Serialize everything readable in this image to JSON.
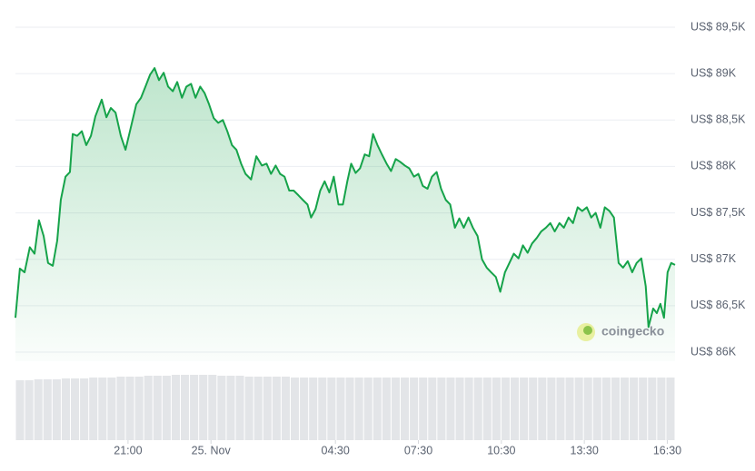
{
  "chart_data": {
    "type": "area",
    "watermark": "coingecko",
    "color": "#16a34a",
    "grid": true,
    "ylim": [
      86000,
      89500
    ],
    "yticks": [
      {
        "value": 86000,
        "label": "US$ 86K"
      },
      {
        "value": 86500,
        "label": "US$ 86,5K"
      },
      {
        "value": 87000,
        "label": "US$ 87K"
      },
      {
        "value": 87500,
        "label": "US$ 87,5K"
      },
      {
        "value": 88000,
        "label": "US$ 88K"
      },
      {
        "value": 88500,
        "label": "US$ 88,5K"
      },
      {
        "value": 89000,
        "label": "US$ 89K"
      },
      {
        "value": 89500,
        "label": "US$ 89,5K"
      }
    ],
    "xlim": [
      -7.07,
      16.78
    ],
    "xticks": [
      {
        "value": -3,
        "label": "21:00"
      },
      {
        "value": 0,
        "label": "25. Nov"
      },
      {
        "value": 4.5,
        "label": "04:30"
      },
      {
        "value": 7.5,
        "label": "07:30"
      },
      {
        "value": 10.5,
        "label": "10:30"
      },
      {
        "value": 13.5,
        "label": "13:30"
      },
      {
        "value": 16.5,
        "label": "16:30"
      }
    ],
    "x": [
      -7.07,
      -6.91,
      -6.74,
      -6.55,
      -6.38,
      -6.22,
      -6.05,
      -5.89,
      -5.72,
      -5.56,
      -5.43,
      -5.26,
      -5.1,
      -5.0,
      -4.84,
      -4.67,
      -4.51,
      -4.34,
      -4.18,
      -3.95,
      -3.78,
      -3.62,
      -3.45,
      -3.26,
      -3.09,
      -2.93,
      -2.7,
      -2.53,
      -2.37,
      -2.2,
      -2.04,
      -1.88,
      -1.71,
      -1.55,
      -1.38,
      -1.22,
      -1.05,
      -0.89,
      -0.72,
      -0.56,
      -0.39,
      -0.23,
      -0.07,
      0.1,
      0.26,
      0.43,
      0.59,
      0.76,
      0.92,
      1.09,
      1.25,
      1.45,
      1.64,
      1.84,
      2.01,
      2.17,
      2.34,
      2.5,
      2.66,
      2.83,
      2.99,
      3.16,
      3.32,
      3.49,
      3.62,
      3.78,
      3.95,
      4.11,
      4.28,
      4.44,
      4.61,
      4.77,
      4.93,
      5.07,
      5.23,
      5.39,
      5.56,
      5.72,
      5.86,
      6.02,
      6.18,
      6.35,
      6.51,
      6.68,
      6.84,
      7.01,
      7.17,
      7.34,
      7.5,
      7.66,
      7.83,
      7.99,
      8.16,
      8.32,
      8.49,
      8.65,
      8.82,
      8.98,
      9.14,
      9.31,
      9.47,
      9.64,
      9.8,
      9.97,
      10.13,
      10.3,
      10.46,
      10.63,
      10.79,
      10.95,
      11.12,
      11.28,
      11.45,
      11.61,
      11.78,
      11.94,
      12.11,
      12.27,
      12.43,
      12.6,
      12.76,
      12.93,
      13.09,
      13.26,
      13.42,
      13.59,
      13.75,
      13.91,
      14.08,
      14.24,
      14.41,
      14.57,
      14.74,
      14.9,
      15.07,
      15.23,
      15.39,
      15.56,
      15.72,
      15.82,
      15.99,
      16.12,
      16.25,
      16.38,
      16.51,
      16.64,
      16.78
    ],
    "values": [
      86370,
      86900,
      86860,
      87130,
      87060,
      87420,
      87250,
      86960,
      86930,
      87200,
      87640,
      87890,
      87940,
      88350,
      88330,
      88380,
      88230,
      88330,
      88540,
      88720,
      88530,
      88630,
      88580,
      88330,
      88180,
      88380,
      88670,
      88740,
      88860,
      88990,
      89060,
      88930,
      89010,
      88860,
      88810,
      88910,
      88740,
      88860,
      88890,
      88740,
      88860,
      88790,
      88670,
      88520,
      88470,
      88500,
      88380,
      88230,
      88180,
      88030,
      87920,
      87860,
      88110,
      88010,
      88030,
      87920,
      88010,
      87920,
      87890,
      87740,
      87740,
      87690,
      87640,
      87590,
      87450,
      87540,
      87740,
      87840,
      87720,
      87890,
      87590,
      87590,
      87840,
      88030,
      87930,
      87980,
      88130,
      88110,
      88350,
      88230,
      88130,
      88030,
      87950,
      88080,
      88050,
      88010,
      87980,
      87890,
      87920,
      87790,
      87760,
      87890,
      87940,
      87760,
      87640,
      87590,
      87340,
      87440,
      87340,
      87450,
      87340,
      87250,
      87000,
      86910,
      86860,
      86810,
      86650,
      86860,
      86960,
      87060,
      87010,
      87150,
      87070,
      87170,
      87230,
      87300,
      87340,
      87390,
      87300,
      87390,
      87340,
      87450,
      87390,
      87560,
      87520,
      87560,
      87450,
      87500,
      87340,
      87560,
      87520,
      87450,
      86960,
      86910,
      86980,
      86860,
      86960,
      87010,
      86710,
      86270,
      86470,
      86420,
      86520,
      86370,
      86860,
      86960,
      86940
    ],
    "volume": {
      "color": "#e3e5e8",
      "values": [
        66,
        66,
        67,
        67,
        67,
        68,
        68,
        68,
        69,
        69,
        69,
        70,
        70,
        70,
        71,
        71,
        71,
        72,
        72,
        72,
        72,
        72,
        71,
        71,
        71,
        70,
        70,
        70,
        70,
        70,
        69,
        69,
        69,
        69,
        69,
        69,
        69,
        69,
        69,
        69,
        69,
        69,
        69,
        69,
        69,
        69,
        69,
        69,
        69,
        69,
        69,
        69,
        69,
        69,
        69,
        69,
        69,
        69,
        69,
        69,
        69,
        69,
        69,
        69,
        69,
        69,
        69,
        69,
        69,
        69,
        69,
        69
      ]
    }
  }
}
